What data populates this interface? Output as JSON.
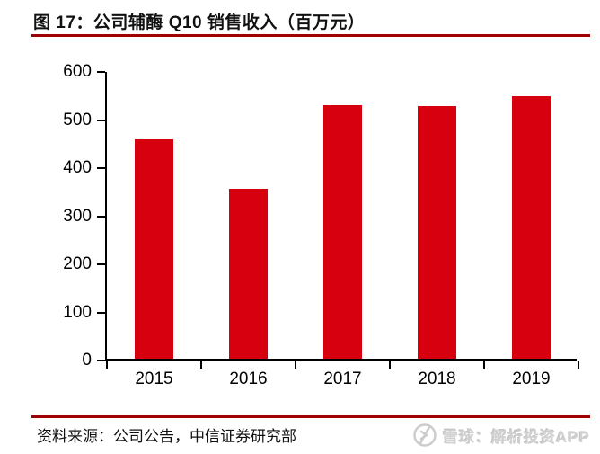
{
  "page": {
    "title": "图 17：公司辅酶 Q10 销售收入（百万元）"
  },
  "chart_data": {
    "type": "bar",
    "title": "图 17：公司辅酶 Q10 销售收入（百万元）",
    "categories": [
      "2015",
      "2016",
      "2017",
      "2018",
      "2019"
    ],
    "values": [
      456,
      354,
      527,
      525,
      546
    ],
    "xlabel": "",
    "ylabel": "",
    "ylim": [
      0,
      600
    ],
    "yticks": [
      0,
      100,
      200,
      300,
      400,
      500,
      600
    ],
    "grid": false,
    "legend": "none",
    "bar_color": "#D7000F"
  },
  "colors": {
    "bar": "#D7000F",
    "rule": "#A00000",
    "axis": "#000000",
    "watermark": "#d0d0d0"
  },
  "footer": {
    "source": "资料来源：公司公告，中信证券研究部",
    "watermark": {
      "logo": "xueqiu-logo",
      "text": "雪球：解析投资APP"
    }
  }
}
